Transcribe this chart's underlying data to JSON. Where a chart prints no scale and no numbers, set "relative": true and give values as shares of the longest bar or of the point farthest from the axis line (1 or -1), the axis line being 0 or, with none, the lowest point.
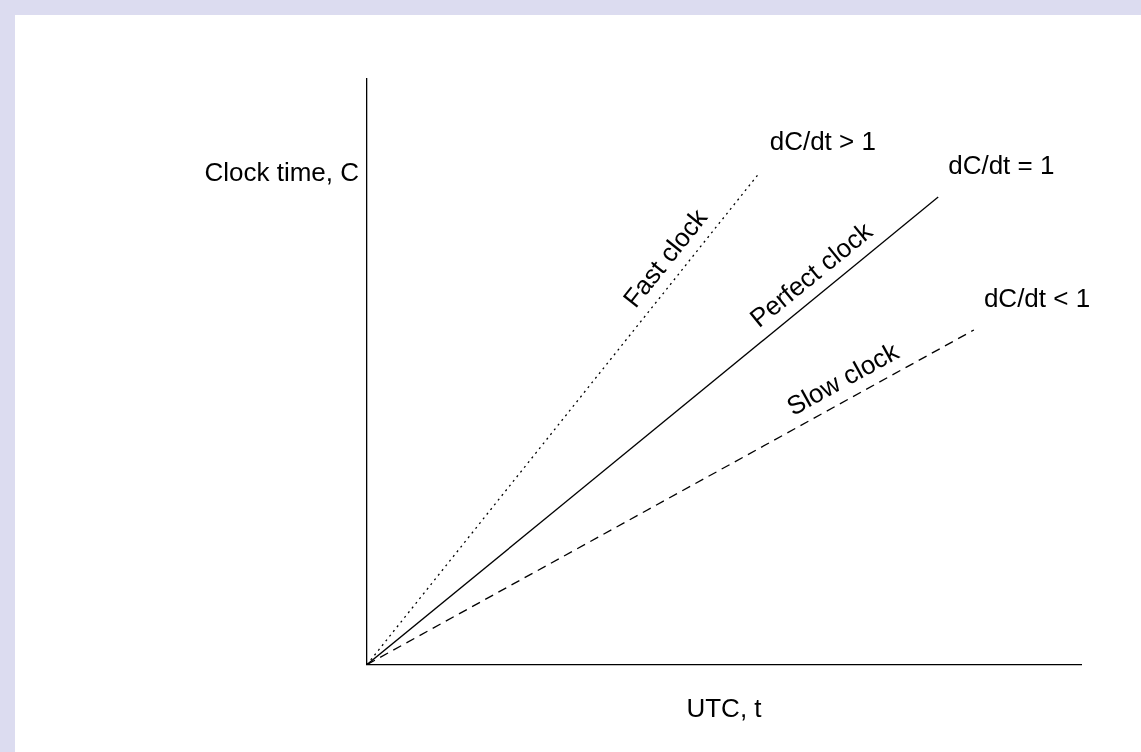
{
  "chart_data": {
    "type": "line",
    "relative": true,
    "xlabel": "UTC, t",
    "ylabel": "Clock time, C",
    "grid": false,
    "legend": false,
    "marker": "none",
    "categories": [
      null,
      null,
      null,
      null,
      null,
      null,
      null,
      null,
      null,
      null,
      null,
      null,
      null,
      null,
      null,
      null,
      null,
      null,
      null,
      null,
      null
    ],
    "series": [
      {
        "name": "Fast clock",
        "color": "#000000",
        "line_style": "dotted",
        "values": [
          0,
          null,
          null,
          null,
          null,
          null,
          null,
          null,
          null,
          null,
          null,
          1,
          null,
          null,
          null,
          null,
          null,
          null,
          null,
          null,
          null
        ]
      },
      {
        "name": "Perfect clock",
        "color": "#000000",
        "line_style": "solid",
        "values": [
          0,
          null,
          null,
          null,
          null,
          null,
          null,
          null,
          null,
          null,
          null,
          null,
          null,
          null,
          null,
          null,
          0.95,
          null,
          null,
          null,
          null
        ]
      },
      {
        "name": "Slow clock",
        "color": "#000000",
        "line_style": "dashed",
        "values": [
          0,
          null,
          null,
          null,
          null,
          null,
          null,
          null,
          null,
          null,
          null,
          null,
          null,
          null,
          null,
          null,
          null,
          0.68,
          null,
          null,
          null
        ]
      }
    ],
    "annotations": [
      "dC/dt > 1",
      "dC/dt = 1",
      "dC/dt < 1"
    ]
  }
}
